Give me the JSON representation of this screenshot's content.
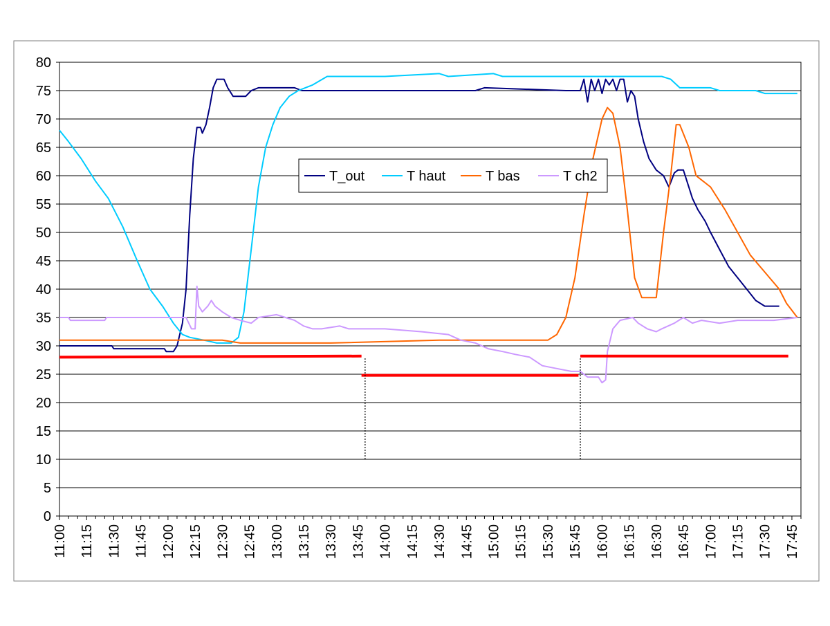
{
  "chart_data": {
    "type": "line",
    "title": "",
    "xlabel": "",
    "ylabel": "",
    "ylim": [
      0,
      80
    ],
    "yticks": [
      0,
      5,
      10,
      15,
      20,
      25,
      30,
      35,
      40,
      45,
      50,
      55,
      60,
      65,
      70,
      75,
      80
    ],
    "xlim_minutes": [
      660,
      1070
    ],
    "xtick_labels": [
      "11:00",
      "11:15",
      "11:30",
      "11:45",
      "12:00",
      "12:15",
      "12:30",
      "12:45",
      "13:00",
      "13:15",
      "13:30",
      "13:45",
      "14:00",
      "14:15",
      "14:30",
      "14:45",
      "15:00",
      "15:15",
      "15:30",
      "15:45",
      "16:00",
      "16:15",
      "16:30",
      "16:45",
      "17:00",
      "17:15",
      "17:30",
      "17:45"
    ],
    "grid": "horizontal",
    "legend_position": "upper-center",
    "series": [
      {
        "name": "T_out",
        "color": "#000080",
        "points": [
          [
            "11:00",
            30
          ],
          [
            "11:15",
            30
          ],
          [
            "11:29",
            30
          ],
          [
            "11:30",
            29.5
          ],
          [
            "11:45",
            29.5
          ],
          [
            "11:58",
            29.5
          ],
          [
            "11:59",
            29
          ],
          [
            "12:03",
            29
          ],
          [
            "12:05",
            30
          ],
          [
            "12:08",
            34
          ],
          [
            "12:10",
            40
          ],
          [
            "12:12",
            53
          ],
          [
            "12:14",
            63
          ],
          [
            "12:16",
            68.5
          ],
          [
            "12:18",
            68.5
          ],
          [
            "12:19",
            67.5
          ],
          [
            "12:21",
            69
          ],
          [
            "12:23",
            72
          ],
          [
            "12:25",
            75.5
          ],
          [
            "12:27",
            77
          ],
          [
            "12:31",
            77
          ],
          [
            "12:33",
            75.5
          ],
          [
            "12:36",
            74
          ],
          [
            "12:43",
            74
          ],
          [
            "12:46",
            75
          ],
          [
            "12:50",
            75.5
          ],
          [
            "13:10",
            75.5
          ],
          [
            "13:14",
            75
          ],
          [
            "14:50",
            75
          ],
          [
            "14:55",
            75.5
          ],
          [
            "15:40",
            75
          ],
          [
            "15:48",
            75
          ],
          [
            "15:50",
            77
          ],
          [
            "15:52",
            73
          ],
          [
            "15:54",
            77
          ],
          [
            "15:56",
            75
          ],
          [
            "15:58",
            77
          ],
          [
            "16:00",
            74.5
          ],
          [
            "16:02",
            77
          ],
          [
            "16:04",
            76
          ],
          [
            "16:06",
            77
          ],
          [
            "16:08",
            75
          ],
          [
            "16:10",
            77
          ],
          [
            "16:12",
            77
          ],
          [
            "16:14",
            73
          ],
          [
            "16:16",
            75
          ],
          [
            "16:18",
            74
          ],
          [
            "16:20",
            70
          ],
          [
            "16:23",
            66
          ],
          [
            "16:26",
            63
          ],
          [
            "16:30",
            61
          ],
          [
            "16:34",
            60
          ],
          [
            "16:37",
            58
          ],
          [
            "16:40",
            60.5
          ],
          [
            "16:42",
            61
          ],
          [
            "16:45",
            61
          ],
          [
            "16:48",
            58
          ],
          [
            "16:50",
            56
          ],
          [
            "16:53",
            54
          ],
          [
            "16:57",
            52
          ],
          [
            "17:00",
            50
          ],
          [
            "17:05",
            47
          ],
          [
            "17:10",
            44
          ],
          [
            "17:15",
            42
          ],
          [
            "17:20",
            40
          ],
          [
            "17:25",
            38
          ],
          [
            "17:30",
            37
          ],
          [
            "17:35",
            37
          ],
          [
            "17:38",
            37
          ]
        ]
      },
      {
        "name": "T haut",
        "color": "#00CCFF",
        "points": [
          [
            "11:00",
            68
          ],
          [
            "11:05",
            66
          ],
          [
            "11:12",
            63
          ],
          [
            "11:20",
            59
          ],
          [
            "11:27",
            56
          ],
          [
            "11:35",
            51
          ],
          [
            "11:43",
            45
          ],
          [
            "11:50",
            40
          ],
          [
            "11:57",
            37
          ],
          [
            "12:03",
            34
          ],
          [
            "12:08",
            32
          ],
          [
            "12:12",
            31.5
          ],
          [
            "12:20",
            31
          ],
          [
            "12:27",
            30.5
          ],
          [
            "12:35",
            30.5
          ],
          [
            "12:39",
            31.5
          ],
          [
            "12:42",
            36
          ],
          [
            "12:46",
            47
          ],
          [
            "12:50",
            58
          ],
          [
            "12:54",
            65
          ],
          [
            "12:58",
            69
          ],
          [
            "13:02",
            72
          ],
          [
            "13:07",
            74
          ],
          [
            "13:12",
            75
          ],
          [
            "13:20",
            76
          ],
          [
            "13:28",
            77.5
          ],
          [
            "14:00",
            77.5
          ],
          [
            "14:30",
            78
          ],
          [
            "14:35",
            77.5
          ],
          [
            "15:00",
            78
          ],
          [
            "15:05",
            77.5
          ],
          [
            "16:00",
            77.5
          ],
          [
            "16:15",
            77.5
          ],
          [
            "16:33",
            77.5
          ],
          [
            "16:38",
            77
          ],
          [
            "16:43",
            75.5
          ],
          [
            "17:00",
            75.5
          ],
          [
            "17:05",
            75
          ],
          [
            "17:25",
            75
          ],
          [
            "17:30",
            74.5
          ],
          [
            "17:48",
            74.5
          ]
        ]
      },
      {
        "name": "T bas",
        "color": "#FF6600",
        "points": [
          [
            "11:00",
            31
          ],
          [
            "12:00",
            31
          ],
          [
            "12:30",
            31
          ],
          [
            "12:40",
            30.5
          ],
          [
            "13:30",
            30.5
          ],
          [
            "14:30",
            31
          ],
          [
            "15:30",
            31
          ],
          [
            "15:35",
            32
          ],
          [
            "15:40",
            35
          ],
          [
            "15:45",
            42
          ],
          [
            "15:50",
            53
          ],
          [
            "15:55",
            63
          ],
          [
            "16:00",
            70
          ],
          [
            "16:03",
            72
          ],
          [
            "16:06",
            71
          ],
          [
            "16:10",
            65
          ],
          [
            "16:14",
            54
          ],
          [
            "16:18",
            42
          ],
          [
            "16:22",
            38.5
          ],
          [
            "16:30",
            38.5
          ],
          [
            "16:34",
            50
          ],
          [
            "16:38",
            60
          ],
          [
            "16:41",
            69
          ],
          [
            "16:43",
            69
          ],
          [
            "16:48",
            65
          ],
          [
            "16:52",
            60
          ],
          [
            "17:00",
            58
          ],
          [
            "17:08",
            54
          ],
          [
            "17:15",
            50
          ],
          [
            "17:22",
            46
          ],
          [
            "17:30",
            43
          ],
          [
            "17:38",
            40
          ],
          [
            "17:42",
            37.5
          ],
          [
            "17:48",
            35
          ]
        ]
      },
      {
        "name": "T ch2",
        "color": "#CC99FF",
        "points": [
          [
            "11:00",
            35
          ],
          [
            "11:05",
            35
          ],
          [
            "11:06",
            34.5
          ],
          [
            "11:25",
            34.5
          ],
          [
            "11:26",
            35
          ],
          [
            "12:10",
            35
          ],
          [
            "12:13",
            33
          ],
          [
            "12:15",
            33
          ],
          [
            "12:16",
            40.5
          ],
          [
            "12:17",
            37
          ],
          [
            "12:19",
            36
          ],
          [
            "12:22",
            37
          ],
          [
            "12:24",
            38
          ],
          [
            "12:26",
            37
          ],
          [
            "12:30",
            36
          ],
          [
            "12:35",
            35
          ],
          [
            "12:40",
            34.5
          ],
          [
            "12:46",
            34
          ],
          [
            "12:50",
            35
          ],
          [
            "13:00",
            35.5
          ],
          [
            "13:05",
            35
          ],
          [
            "13:10",
            34.5
          ],
          [
            "13:15",
            33.5
          ],
          [
            "13:20",
            33
          ],
          [
            "13:25",
            33
          ],
          [
            "13:35",
            33.5
          ],
          [
            "13:40",
            33
          ],
          [
            "14:00",
            33
          ],
          [
            "14:20",
            32.5
          ],
          [
            "14:35",
            32
          ],
          [
            "14:42",
            31
          ],
          [
            "14:50",
            30.5
          ],
          [
            "14:57",
            29.5
          ],
          [
            "15:05",
            29
          ],
          [
            "15:12",
            28.5
          ],
          [
            "15:20",
            28
          ],
          [
            "15:27",
            26.5
          ],
          [
            "15:35",
            26
          ],
          [
            "15:43",
            25.5
          ],
          [
            "15:48",
            25.5
          ],
          [
            "15:52",
            24.5
          ],
          [
            "15:58",
            24.5
          ],
          [
            "16:00",
            23.5
          ],
          [
            "16:02",
            24
          ],
          [
            "16:03",
            29
          ],
          [
            "16:06",
            33
          ],
          [
            "16:10",
            34.5
          ],
          [
            "16:17",
            35
          ],
          [
            "16:20",
            34
          ],
          [
            "16:25",
            33
          ],
          [
            "16:30",
            32.5
          ],
          [
            "16:33",
            33
          ],
          [
            "16:40",
            34
          ],
          [
            "16:45",
            35
          ],
          [
            "16:50",
            34
          ],
          [
            "16:55",
            34.5
          ],
          [
            "17:05",
            34
          ],
          [
            "17:15",
            34.5
          ],
          [
            "17:25",
            34.5
          ],
          [
            "17:35",
            34.5
          ],
          [
            "17:48",
            35
          ]
        ]
      },
      {
        "name": "",
        "color": "#FF0000",
        "segments": [
          [
            [
              "11:00",
              28
            ],
            [
              "13:47",
              28.2
            ]
          ],
          [
            [
              "13:47",
              24.8
            ],
            [
              "15:47",
              24.8
            ]
          ],
          [
            [
              "15:48",
              28.2
            ],
            [
              "17:43",
              28.2
            ]
          ]
        ]
      }
    ],
    "dotted_verticals": [
      {
        "x": "13:49",
        "y_from": 10,
        "y_to": 28
      },
      {
        "x": "15:48",
        "y_from": 10,
        "y_to": 28
      }
    ]
  }
}
